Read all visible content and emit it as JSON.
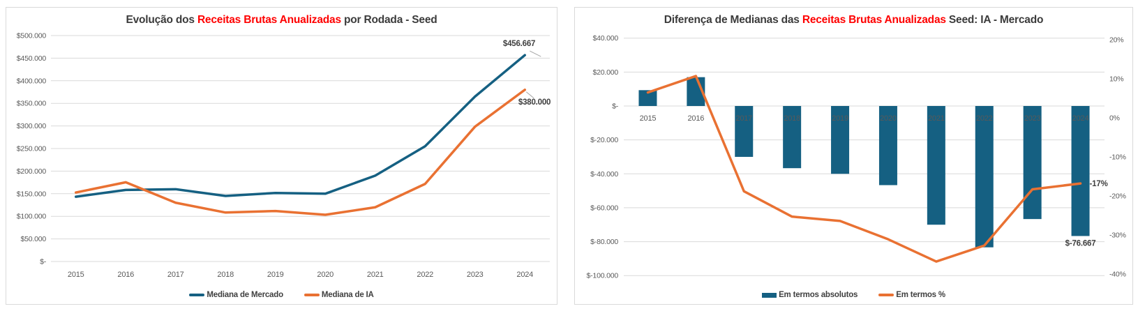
{
  "colors": {
    "teal": "#156082",
    "orange": "#E97132",
    "title_highlight_red": "#FF0000",
    "title_text": "#3B3B3B",
    "axis_label": "#595959",
    "gridline": "#D9D9D9",
    "data_label": "#404040",
    "leader_line": "#A6A6A6",
    "card_border": "#D9D9D9",
    "background": "#FFFFFF"
  },
  "chart_data": [
    {
      "type": "line",
      "title": "Evolução dos Receitas Brutas Anualizadas por Rodada - Seed",
      "title_parts": {
        "prefix": "Evolução dos ",
        "highlight": "Receitas Brutas Anualizadas",
        "suffix": " por Rodada - Seed"
      },
      "categories": [
        "2015",
        "2016",
        "2017",
        "2018",
        "2019",
        "2020",
        "2021",
        "2022",
        "2023",
        "2024"
      ],
      "series": [
        {
          "name": "Mediana de Mercado",
          "color": "#156082",
          "values": [
            143333,
            158333,
            160000,
            145000,
            151667,
            150000,
            190000,
            255000,
            365000,
            456667
          ]
        },
        {
          "name": "Mediana de IA",
          "color": "#E97132",
          "values": [
            152667,
            175333,
            130000,
            108333,
            111667,
            103333,
            120000,
            171667,
            298333,
            380000
          ]
        }
      ],
      "ylim": [
        0,
        500000
      ],
      "ytick_step": 50000,
      "ytick_labels": [
        "$500.000",
        "$450.000",
        "$400.000",
        "$350.000",
        "$300.000",
        "$250.000",
        "$200.000",
        "$150.000",
        "$100.000",
        "$50.000",
        "$-"
      ],
      "grid": true,
      "legend_position": "bottom",
      "data_labels": [
        {
          "series": "Mediana de Mercado",
          "category": "2024",
          "text": "$456.667"
        },
        {
          "series": "Mediana de IA",
          "category": "2024",
          "text": "$380.000"
        }
      ]
    },
    {
      "type": "combo-bar-line",
      "title": "Diferença de Medianas das Receitas Brutas Anualizadas Seed: IA - Mercado",
      "title_parts": {
        "prefix": "Diferença de Medianas das ",
        "highlight": "Receitas Brutas Anualizadas",
        "suffix": " Seed: IA - Mercado"
      },
      "categories": [
        "2015",
        "2016",
        "2017",
        "2018",
        "2019",
        "2020",
        "2021",
        "2022",
        "2023",
        "2024"
      ],
      "series": [
        {
          "name": "Em termos absolutos",
          "chart": "bar",
          "axis": "left",
          "color": "#156082",
          "values": [
            9333,
            17000,
            -30000,
            -36667,
            -40000,
            -46667,
            -70000,
            -83333,
            -66667,
            -76667
          ]
        },
        {
          "name": "Em termos %",
          "chart": "line",
          "axis": "right",
          "color": "#E97132",
          "values": [
            6.5,
            10.7,
            -18.8,
            -25.3,
            -26.4,
            -31.1,
            -36.8,
            -32.7,
            -18.3,
            -16.8
          ]
        }
      ],
      "left_axis": {
        "min": -100000,
        "max": 40000,
        "tick_step": 20000,
        "tick_labels": [
          "$40.000",
          "$20.000",
          "$-",
          "$-20.000",
          "$-40.000",
          "$-60.000",
          "$-80.000",
          "$-100.000"
        ]
      },
      "right_axis": {
        "min": -40,
        "max": 20,
        "tick_step": 10,
        "tick_labels": [
          "20%",
          "10%",
          "0%",
          "-10%",
          "-20%",
          "-30%",
          "-40%"
        ]
      },
      "grid": true,
      "legend_position": "bottom",
      "data_labels": [
        {
          "series": "Em termos absolutos",
          "category": "2024",
          "text": "$-76.667"
        },
        {
          "series": "Em termos %",
          "category": "2024",
          "text": "-17%"
        }
      ]
    }
  ]
}
